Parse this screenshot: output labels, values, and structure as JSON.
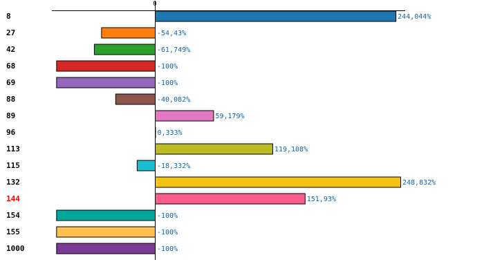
{
  "chart_data": {
    "type": "bar",
    "orientation": "horizontal",
    "title": "",
    "xlabel": "",
    "ylabel": "",
    "zero_tick_label": "0",
    "xlim": [
      -100,
      248.832
    ],
    "highlight_category": "144",
    "highlight_color": "#ff0000",
    "categories": [
      "8",
      "27",
      "42",
      "68",
      "69",
      "88",
      "89",
      "96",
      "113",
      "115",
      "132",
      "144",
      "154",
      "155",
      "1000"
    ],
    "values": [
      244.044,
      -54.43,
      -61.749,
      -100,
      -100,
      -40.082,
      59.179,
      0.333,
      119.108,
      -18.332,
      248.832,
      151.93,
      -100,
      -100,
      -100
    ],
    "value_labels": [
      "244,044%",
      "-54,43%",
      "-61,749%",
      "-100%",
      "-100%",
      "-40,082%",
      "59,179%",
      "0,333%",
      "119,108%",
      "-18,332%",
      "248,832%",
      "151,93%",
      "-100%",
      "-100%",
      "-100%"
    ],
    "colors": [
      "#1f77b4",
      "#ff7f0e",
      "#2ca02c",
      "#d62728",
      "#9467bd",
      "#8c564b",
      "#e377c2",
      "#7f7f7f",
      "#bcbd22",
      "#17becf",
      "#f5c211",
      "#ff5c8a",
      "#00a99d",
      "#ffc04d",
      "#7b3a96"
    ]
  }
}
